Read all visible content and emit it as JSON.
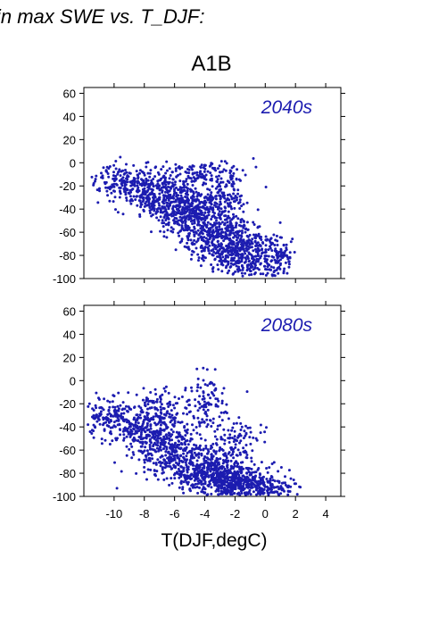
{
  "figure": {
    "title": "in max SWE vs. T_DJF:",
    "scenario": "A1B",
    "xlabel": "T(DJF,degC)",
    "accent_color": "#1c1cb0"
  },
  "chart_data": [
    {
      "type": "scatter",
      "title": "2040s",
      "xlim": [
        -12,
        5
      ],
      "ylim": [
        -100,
        65
      ],
      "xticks": [
        -10,
        -8,
        -6,
        -4,
        -2,
        0,
        2,
        4
      ],
      "yticks": [
        60,
        40,
        20,
        0,
        -20,
        -40,
        -60,
        -80,
        -100
      ],
      "x_tick_labels_shown": false,
      "marker_color": "#1c1cb0",
      "point_cloud": {
        "x_range": [
          -11.8,
          2.0
        ],
        "y_range": [
          -98,
          5
        ],
        "trend": "negative",
        "densest_region": {
          "x": [
            -6,
            -2
          ],
          "y": [
            -70,
            -30
          ]
        },
        "approx_points": 2000
      }
    },
    {
      "type": "scatter",
      "title": "2080s",
      "xlim": [
        -12,
        5
      ],
      "ylim": [
        -100,
        65
      ],
      "xticks": [
        -10,
        -8,
        -6,
        -4,
        -2,
        0,
        2,
        4
      ],
      "yticks": [
        60,
        40,
        20,
        0,
        -20,
        -40,
        -60,
        -80,
        -100
      ],
      "x_tick_labels_shown": true,
      "marker_color": "#1c1cb0",
      "point_cloud": {
        "x_range": [
          -11.8,
          2.4
        ],
        "y_range": [
          -99,
          12
        ],
        "trend": "negative",
        "densest_region": {
          "x": [
            -6,
            -1
          ],
          "y": [
            -95,
            -55
          ]
        },
        "approx_points": 2000
      }
    }
  ]
}
